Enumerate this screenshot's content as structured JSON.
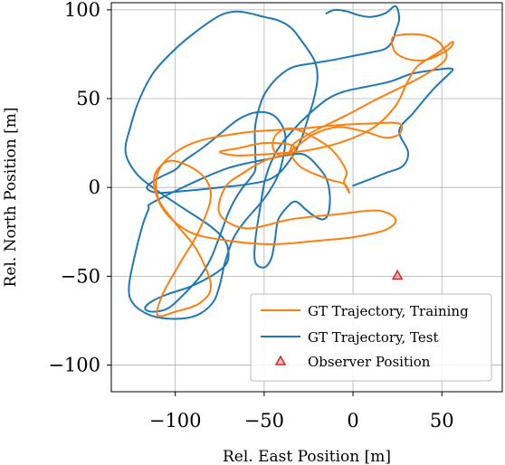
{
  "chart_data": {
    "type": "line",
    "xlabel": "Rel. East Position [m]",
    "ylabel": "Rel. North Position [m]",
    "xlim": [
      -136,
      84
    ],
    "ylim": [
      -115,
      104
    ],
    "xticks": [
      -100,
      -50,
      0,
      50
    ],
    "yticks": [
      -100,
      -50,
      0,
      50,
      100
    ],
    "xtick_labels": [
      "−100",
      "−50",
      "0",
      "50"
    ],
    "ytick_labels": [
      "−100",
      "−50",
      "0",
      "50",
      "100"
    ],
    "grid": true,
    "legend_position": "lower right",
    "series": [
      {
        "name": "GT Trajectory, Training",
        "color": "#ff7f0e",
        "x": [
          -2,
          -5,
          -4,
          -14,
          -33,
          -43,
          -45,
          -40,
          -33,
          -22,
          -8,
          8,
          18,
          26,
          26,
          10,
          -10,
          -30,
          -60,
          -90,
          -108,
          -110,
          -100,
          -88,
          -80,
          -86,
          -100,
          -110,
          -107,
          -97,
          -87,
          -80,
          -86,
          -103,
          -112,
          -107,
          -92,
          -70,
          -45,
          -20,
          0,
          18,
          24,
          14,
          -8,
          -35,
          -60,
          -75,
          -72,
          -62,
          -50,
          -40,
          -33,
          -35,
          -50,
          -65,
          -75,
          -65,
          -45,
          -25,
          -5,
          12,
          24,
          30,
          36,
          48,
          56,
          54,
          42,
          32,
          24,
          22,
          28,
          38,
          45,
          50,
          52,
          38,
          14,
          -5,
          -25,
          -35,
          -30,
          -15,
          -5,
          -2
        ],
        "y": [
          -3,
          3,
          10,
          23,
          33,
          30,
          22,
          18,
          22,
          30,
          34,
          31,
          28,
          30,
          36,
          36,
          35,
          33,
          31,
          25,
          12,
          -5,
          -20,
          -35,
          -55,
          -65,
          -70,
          -72,
          -60,
          -42,
          -25,
          -5,
          8,
          15,
          5,
          -12,
          -25,
          -30,
          -32,
          -30,
          -28,
          -24,
          -18,
          -13,
          -15,
          -18,
          -23,
          -15,
          0,
          8,
          15,
          18,
          20,
          24,
          25,
          22,
          20,
          18,
          19,
          21,
          26,
          34,
          46,
          58,
          68,
          76,
          82,
          78,
          72,
          72,
          76,
          84,
          86,
          86,
          84,
          80,
          72,
          62,
          50,
          40,
          30,
          22,
          12,
          5,
          2,
          -3
        ]
      },
      {
        "name": "GT Trajectory, Test",
        "color": "#1f77b4",
        "x": [
          0,
          8,
          18,
          28,
          31,
          26,
          34,
          44,
          52,
          56,
          54,
          45,
          33,
          22,
          14,
          4,
          -5,
          -14,
          -24,
          -34,
          -42,
          -47,
          -50,
          -52,
          -55,
          -55,
          -50,
          -46,
          -44,
          -42,
          -36,
          -32,
          -27,
          -22,
          -17,
          -14,
          -13,
          -15,
          -20,
          -25,
          -30,
          -38,
          -48,
          -58,
          -70,
          -85,
          -100,
          -110,
          -115,
          -115,
          -118,
          -122,
          -126,
          -124,
          -114,
          -100,
          -88,
          -79,
          -75,
          -72,
          -67,
          -60,
          -53,
          -47,
          -41,
          -38,
          -42,
          -48,
          -56,
          -65,
          -75,
          -85,
          -95,
          -100,
          -110,
          -116,
          -110,
          -95,
          -75,
          -58,
          -46,
          -38,
          -30,
          -25,
          -22,
          -20,
          -22,
          -30,
          -35,
          -42,
          -50,
          -58,
          -65,
          -72,
          -78,
          -88,
          -100,
          -112,
          -120,
          -125,
          -128,
          -122,
          -110,
          -95,
          -80,
          -72,
          -70,
          -72,
          -80,
          -92,
          -104,
          -113,
          -117,
          -113,
          -104,
          -95,
          -86,
          -80,
          -76,
          -73,
          -70,
          -66,
          -62,
          -58,
          -55,
          -55,
          -55,
          -51,
          -46,
          -40,
          -33,
          -22,
          -10,
          0,
          10,
          18,
          22,
          24,
          26,
          24,
          18,
          10,
          3,
          -3,
          -10,
          -15
        ],
        "y": [
          1,
          4,
          8,
          12,
          20,
          32,
          42,
          54,
          62,
          66,
          67,
          66,
          64,
          60,
          58,
          56,
          54,
          50,
          42,
          32,
          22,
          12,
          2,
          -10,
          -30,
          -42,
          -45,
          -40,
          -30,
          -18,
          -10,
          -8,
          -12,
          -16,
          -18,
          -15,
          -5,
          5,
          12,
          17,
          19,
          18,
          16,
          14,
          11,
          5,
          -2,
          -7,
          -10,
          -12,
          -20,
          -35,
          -55,
          -65,
          -72,
          -74,
          -72,
          -65,
          -55,
          -42,
          -28,
          -18,
          -10,
          -2,
          10,
          28,
          38,
          42,
          42,
          38,
          30,
          22,
          15,
          10,
          5,
          0,
          -3,
          -2,
          0,
          2,
          5,
          12,
          25,
          40,
          50,
          62,
          72,
          84,
          90,
          94,
          96,
          98,
          99,
          98,
          95,
          88,
          78,
          65,
          50,
          35,
          20,
          8,
          -2,
          -12,
          -22,
          -30,
          -38,
          -44,
          -50,
          -56,
          -60,
          -64,
          -68,
          -70,
          -68,
          -60,
          -50,
          -40,
          -30,
          -22,
          -14,
          -6,
          0,
          5,
          10,
          20,
          35,
          50,
          58,
          64,
          68,
          70,
          72,
          74,
          76,
          78,
          82,
          88,
          95,
          102,
          98,
          96,
          97,
          99,
          100,
          98
        ]
      },
      {
        "name": "Observer Position",
        "type": "marker",
        "marker": "triangle",
        "color": "#d62728",
        "x": [
          25
        ],
        "y": [
          -50
        ]
      }
    ]
  }
}
